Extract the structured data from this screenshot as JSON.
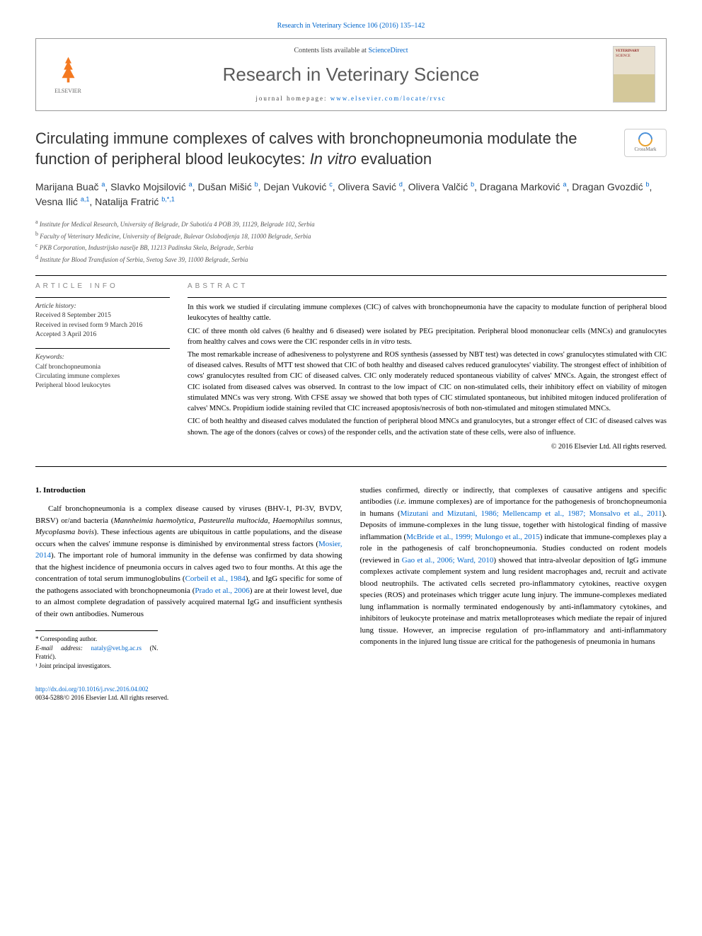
{
  "citation": "Research in Veterinary Science 106 (2016) 135–142",
  "header": {
    "contents_line_prefix": "Contents lists available at ",
    "contents_link": "ScienceDirect",
    "journal_name": "Research in Veterinary Science",
    "homepage_prefix": "journal homepage: ",
    "homepage_url": "www.elsevier.com/locate/rvsc",
    "elsevier_label": "ELSEVIER",
    "cover_title": "VETERINARY",
    "cover_subtitle": "SCIENCE"
  },
  "crossmark_label": "CrossMark",
  "title_part1": "Circulating immune complexes of calves with bronchopneumonia modulate the function of peripheral blood leukocytes: ",
  "title_italic": "In vitro",
  "title_part2": " evaluation",
  "authors_html": "Marijana Buač <sup>a</sup>, Slavko Mojsilović <sup>a</sup>, Dušan Mišić <sup>b</sup>, Dejan Vuković <sup>c</sup>, Olivera Savić <sup>d</sup>, Olivera Valčić <sup>b</sup>, Dragana Marković <sup>a</sup>, Dragan Gvozdić <sup>b</sup>, Vesna Ilić <sup>a,1</sup>, Natalija Fratrić <sup>b,*,1</sup>",
  "affiliations": [
    {
      "sup": "a",
      "text": "Institute for Medical Research, University of Belgrade, Dr Subotića 4 POB 39, 11129, Belgrade 102, Serbia"
    },
    {
      "sup": "b",
      "text": "Faculty of Veterinary Medicine, University of Belgrade, Bulevar Oslobodjenja 18, 11000 Belgrade, Serbia"
    },
    {
      "sup": "c",
      "text": "PKB Corporation, Industrijsko naselje BB, 11213 Padinska Skela, Belgrade, Serbia"
    },
    {
      "sup": "d",
      "text": "Institute for Blood Transfusion of Serbia, Svetog Save 39, 11000 Belgrade, Serbia"
    }
  ],
  "article_info_label": "article info",
  "abstract_label": "abstract",
  "history": {
    "label": "Article history:",
    "received": "Received 8 September 2015",
    "revised": "Received in revised form 9 March 2016",
    "accepted": "Accepted 3 April 2016"
  },
  "keywords": {
    "label": "Keywords:",
    "items": [
      "Calf bronchopneumonia",
      "Circulating immune complexes",
      "Peripheral blood leukocytes"
    ]
  },
  "abstract_paragraphs": [
    "In this work we studied if circulating immune complexes (CIC) of calves with bronchopneumonia have the capacity to modulate function of peripheral blood leukocytes of healthy cattle.",
    "CIC of three month old calves (6 healthy and 6 diseased) were isolated by PEG precipitation. Peripheral blood mononuclear cells (MNCs) and granulocytes from healthy calves and cows were the CIC responder cells in <span class=\"italic\">in vitro</span> tests.",
    "The most remarkable increase of adhesiveness to polystyrene and ROS synthesis (assessed by NBT test) was detected in cows' granulocytes stimulated with CIC of diseased calves. Results of MTT test showed that CIC of both healthy and diseased calves reduced granulocytes' viability. The strongest effect of inhibition of cows' granulocytes resulted from CIC of diseased calves. CIC only moderately reduced spontaneous viability of calves' MNCs. Again, the strongest effect of CIC isolated from diseased calves was observed. In contrast to the low impact of CIC on non-stimulated cells, their inhibitory effect on viability of mitogen stimulated MNCs was very strong. With CFSE assay we showed that both types of CIC stimulated spontaneous, but inhibited mitogen induced proliferation of calves' MNCs. Propidium iodide staining reviled that CIC increased apoptosis/necrosis of both non-stimulated and mitogen stimulated MNCs.",
    "CIC of both healthy and diseased calves modulated the function of peripheral blood MNCs and granulocytes, but a stronger effect of CIC of diseased calves was shown. The age of the donors (calves or cows) of the responder cells, and the activation state of these cells, were also of influence."
  ],
  "copyright": "© 2016 Elsevier Ltd. All rights reserved.",
  "intro_heading": "1. Introduction",
  "intro_col1": "Calf bronchopneumonia is a complex disease caused by viruses (BHV-1, PI-3V, BVDV, BRSV) or/and bacteria (<span class=\"italic\">Mannheimia haemolytica</span>, <span class=\"italic\">Pasteurella multocida</span>, <span class=\"italic\">Haemophilus somnus</span>, <span class=\"italic\">Mycoplasma bovis</span>). These infectious agents are ubiquitous in cattle populations, and the disease occurs when the calves' immune response is diminished by environmental stress factors (<span class=\"link\">Mosier, 2014</span>). The important role of humoral immunity in the defense was confirmed by data showing that the highest incidence of pneumonia occurs in calves aged two to four months. At this age the concentration of total serum immunoglobulins (<span class=\"link\">Corbeil et al., 1984</span>), and IgG specific for some of the pathogens associated with bronchopneumonia (<span class=\"link\">Prado et al., 2006</span>) are at their lowest level, due to an almost complete degradation of passively acquired maternal IgG and insufficient synthesis of their own antibodies. Numerous",
  "intro_col2": "studies confirmed, directly or indirectly, that complexes of causative antigens and specific antibodies (<span class=\"italic\">i.e.</span> immune complexes) are of importance for the pathogenesis of bronchopneumonia in humans (<span class=\"link\">Mizutani and Mizutani, 1986; Mellencamp et al., 1987; Monsalvo et al., 2011</span>). Deposits of immune-complexes in the lung tissue, together with histological finding of massive inflammation (<span class=\"link\">McBride et al., 1999; Mulongo et al., 2015</span>) indicate that immune-complexes play a role in the pathogenesis of calf bronchopneumonia. Studies conducted on rodent models (reviewed in <span class=\"link\">Gao et al., 2006; Ward, 2010</span>) showed that intra-alveolar deposition of IgG immune complexes activate complement system and lung resident macrophages and, recruit and activate blood neutrophils. The activated cells secreted pro-inflammatory cytokines, reactive oxygen species (ROS) and proteinases which trigger acute lung injury. The immune-complexes mediated lung inflammation is normally terminated endogenously by anti-inflammatory cytokines, and inhibitors of leukocyte proteinase and matrix metalloproteases which mediate the repair of injured lung tissue. However, an imprecise regulation of pro-inflammatory and anti-inflammatory components in the injured lung tissue are critical for the pathogenesis of pneumonia in humans",
  "footnotes": {
    "corresponding": "* Corresponding author.",
    "email_label": "E-mail address:",
    "email": "nataly@vet.bg.ac.rs",
    "email_name": "(N. Fratrić).",
    "joint": "¹ Joint principal investigators."
  },
  "bottom": {
    "doi": "http://dx.doi.org/10.1016/j.rvsc.2016.04.002",
    "issn_line": "0034-5288/© 2016 Elsevier Ltd. All rights reserved."
  },
  "colors": {
    "link": "#0066cc",
    "elsevier_orange": "#f47920",
    "text": "#000000",
    "gray_text": "#5a5a5a"
  }
}
